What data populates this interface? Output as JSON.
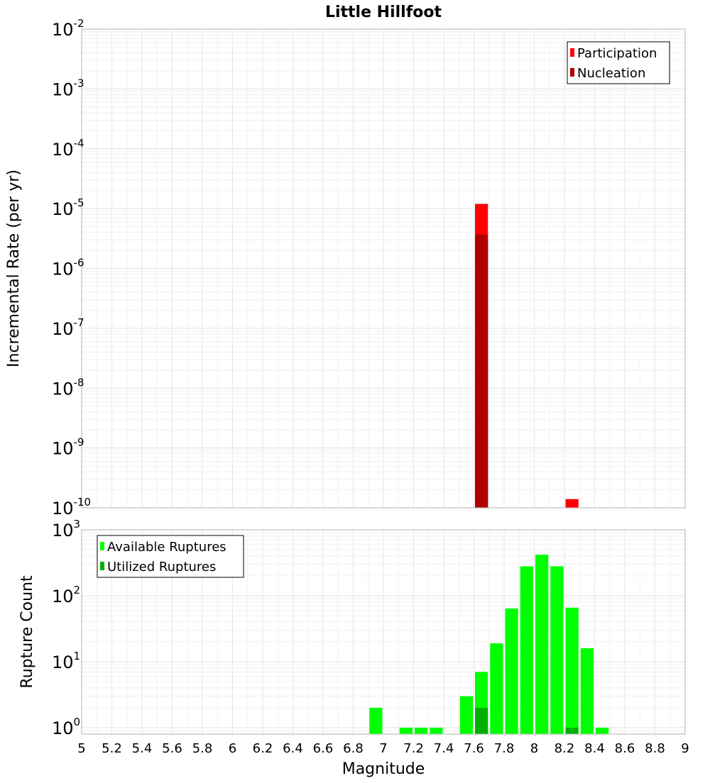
{
  "chart_data": [
    {
      "type": "bar",
      "title": "Little Hillfoot",
      "xlabel": "",
      "ylabel": "Incremental Rate (per yr)",
      "yscale": "log",
      "xlim": [
        5,
        9
      ],
      "ylim": [
        1e-10,
        0.01
      ],
      "ytick_labels": [
        {
          "base": "10",
          "exp": "-2",
          "value": 0.01
        },
        {
          "base": "10",
          "exp": "-3",
          "value": 0.001
        },
        {
          "base": "10",
          "exp": "-4",
          "value": 0.0001
        },
        {
          "base": "10",
          "exp": "-5",
          "value": 1e-05
        },
        {
          "base": "10",
          "exp": "-6",
          "value": 1e-06
        },
        {
          "base": "10",
          "exp": "-7",
          "value": 1e-07
        },
        {
          "base": "10",
          "exp": "-8",
          "value": 1e-08
        },
        {
          "base": "10",
          "exp": "-9",
          "value": 1e-09
        },
        {
          "base": "10",
          "exp": "-10",
          "value": 1e-10
        }
      ],
      "grid": true,
      "legend_position": "top-right",
      "bar_width": 0.1,
      "series": [
        {
          "name": "Participation",
          "color": "#ff0000",
          "points": [
            {
              "x": 7.65,
              "y": 1.2e-05
            },
            {
              "x": 8.25,
              "y": 1.4e-10
            }
          ]
        },
        {
          "name": "Nucleation",
          "color": "#b00000",
          "points": [
            {
              "x": 7.65,
              "y": 3.7e-06
            }
          ]
        }
      ]
    },
    {
      "type": "bar",
      "title": "",
      "xlabel": "Magnitude",
      "ylabel": "Rupture Count",
      "yscale": "log",
      "xlim": [
        5,
        9
      ],
      "ylim": [
        0.8,
        1000
      ],
      "ytick_labels": [
        {
          "base": "10",
          "exp": "3",
          "value": 1000
        },
        {
          "base": "10",
          "exp": "2",
          "value": 100
        },
        {
          "base": "10",
          "exp": "1",
          "value": 10
        },
        {
          "base": "10",
          "exp": "0",
          "value": 1
        }
      ],
      "xtick_labels": [
        "5",
        "5.2",
        "5.4",
        "5.6",
        "5.8",
        "6",
        "6.2",
        "6.4",
        "6.6",
        "6.8",
        "7",
        "7.2",
        "7.4",
        "7.6",
        "7.8",
        "8",
        "8.2",
        "8.4",
        "8.6",
        "8.8",
        "9"
      ],
      "grid": true,
      "legend_position": "top-left",
      "bar_width": 0.1,
      "series": [
        {
          "name": "Available Ruptures",
          "color": "#00ff00",
          "points": [
            {
              "x": 6.95,
              "y": 2
            },
            {
              "x": 7.15,
              "y": 1
            },
            {
              "x": 7.25,
              "y": 1
            },
            {
              "x": 7.35,
              "y": 1
            },
            {
              "x": 7.55,
              "y": 3
            },
            {
              "x": 7.65,
              "y": 7
            },
            {
              "x": 7.75,
              "y": 19
            },
            {
              "x": 7.85,
              "y": 64
            },
            {
              "x": 7.95,
              "y": 280
            },
            {
              "x": 8.05,
              "y": 420
            },
            {
              "x": 8.15,
              "y": 280
            },
            {
              "x": 8.25,
              "y": 66
            },
            {
              "x": 8.35,
              "y": 16
            },
            {
              "x": 8.45,
              "y": 1
            }
          ]
        },
        {
          "name": "Utilized Ruptures",
          "color": "#00b000",
          "points": [
            {
              "x": 7.65,
              "y": 2
            },
            {
              "x": 8.25,
              "y": 1
            }
          ]
        }
      ]
    }
  ]
}
